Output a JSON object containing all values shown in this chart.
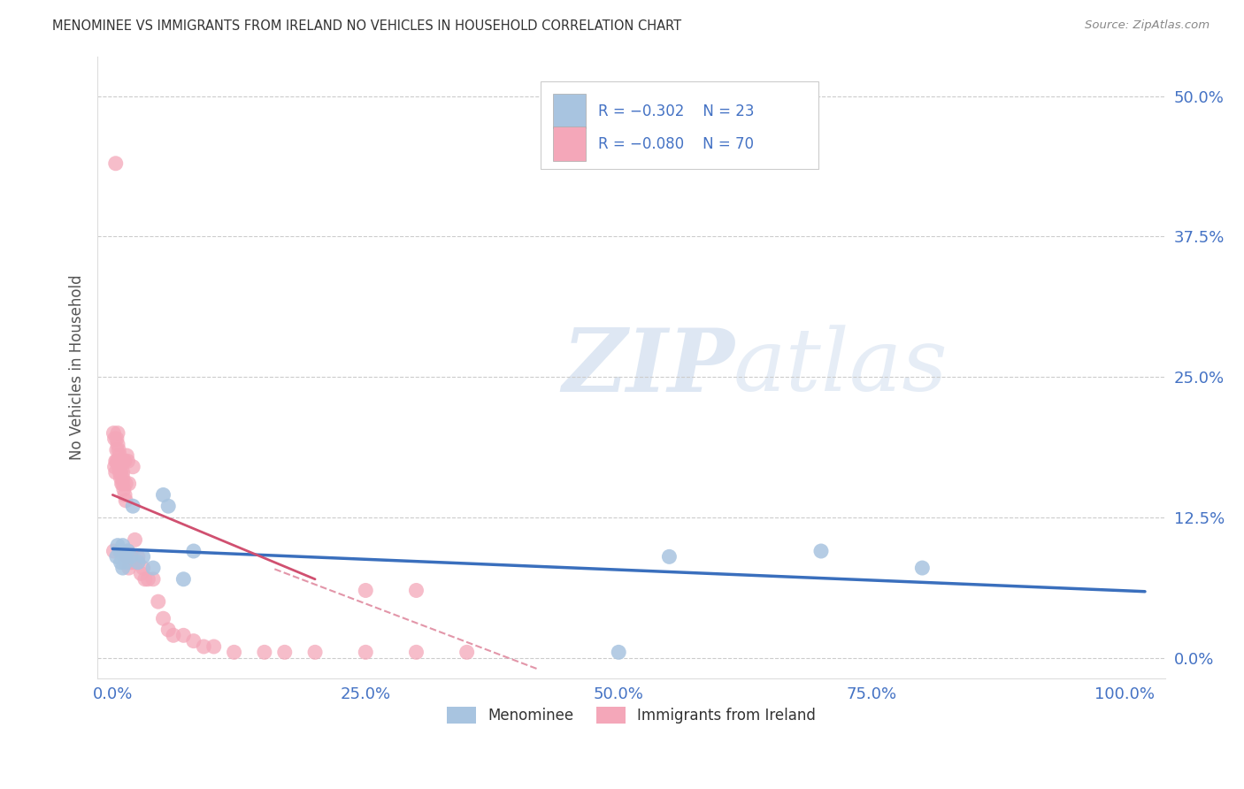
{
  "title": "MENOMINEE VS IMMIGRANTS FROM IRELAND NO VEHICLES IN HOUSEHOLD CORRELATION CHART",
  "source": "Source: ZipAtlas.com",
  "ylabel": "No Vehicles in Household",
  "xlabel_ticks": [
    "0.0%",
    "25.0%",
    "50.0%",
    "75.0%",
    "100.0%"
  ],
  "xlabel_tick_vals": [
    0.0,
    0.25,
    0.5,
    0.75,
    1.0
  ],
  "ylabel_ticks": [
    "0.0%",
    "12.5%",
    "25.0%",
    "37.5%",
    "50.0%"
  ],
  "ylabel_tick_vals": [
    0.0,
    0.125,
    0.25,
    0.375,
    0.5
  ],
  "xlim": [
    -0.015,
    1.04
  ],
  "ylim": [
    -0.018,
    0.535
  ],
  "menominee_color": "#a8c4e0",
  "ireland_color": "#f4a7b9",
  "trendline_menominee_color": "#3a6fbd",
  "trendline_ireland_color": "#d05070",
  "watermark_zip": "ZIP",
  "watermark_atlas": "atlas",
  "background_color": "#ffffff",
  "grid_color": "#cccccc",
  "title_color": "#333333",
  "tick_color": "#4472c4",
  "menominee_x": [
    0.004,
    0.005,
    0.007,
    0.008,
    0.009,
    0.01,
    0.01,
    0.012,
    0.013,
    0.015,
    0.018,
    0.02,
    0.025,
    0.03,
    0.04,
    0.05,
    0.055,
    0.07,
    0.08,
    0.5,
    0.55,
    0.7,
    0.8
  ],
  "menominee_y": [
    0.09,
    0.1,
    0.095,
    0.085,
    0.095,
    0.1,
    0.08,
    0.09,
    0.085,
    0.095,
    0.09,
    0.135,
    0.085,
    0.09,
    0.08,
    0.145,
    0.135,
    0.07,
    0.095,
    0.005,
    0.09,
    0.095,
    0.08
  ],
  "ireland_x": [
    0.001,
    0.001,
    0.002,
    0.002,
    0.003,
    0.003,
    0.003,
    0.004,
    0.004,
    0.004,
    0.005,
    0.005,
    0.005,
    0.006,
    0.006,
    0.007,
    0.007,
    0.007,
    0.008,
    0.008,
    0.008,
    0.009,
    0.009,
    0.01,
    0.01,
    0.01,
    0.011,
    0.011,
    0.012,
    0.012,
    0.013,
    0.013,
    0.014,
    0.014,
    0.015,
    0.015,
    0.016,
    0.016,
    0.017,
    0.018,
    0.019,
    0.02,
    0.02,
    0.021,
    0.022,
    0.023,
    0.025,
    0.025,
    0.028,
    0.03,
    0.032,
    0.035,
    0.04,
    0.045,
    0.05,
    0.055,
    0.06,
    0.07,
    0.08,
    0.09,
    0.1,
    0.12,
    0.15,
    0.17,
    0.2,
    0.25,
    0.25,
    0.3,
    0.3,
    0.35
  ],
  "ireland_y": [
    0.095,
    0.2,
    0.17,
    0.195,
    0.165,
    0.175,
    0.44,
    0.175,
    0.195,
    0.185,
    0.175,
    0.19,
    0.2,
    0.17,
    0.185,
    0.165,
    0.175,
    0.18,
    0.16,
    0.165,
    0.175,
    0.155,
    0.175,
    0.155,
    0.165,
    0.16,
    0.15,
    0.175,
    0.145,
    0.175,
    0.14,
    0.155,
    0.09,
    0.18,
    0.095,
    0.175,
    0.08,
    0.155,
    0.085,
    0.09,
    0.085,
    0.09,
    0.17,
    0.085,
    0.105,
    0.085,
    0.085,
    0.09,
    0.075,
    0.08,
    0.07,
    0.07,
    0.07,
    0.05,
    0.035,
    0.025,
    0.02,
    0.02,
    0.015,
    0.01,
    0.01,
    0.005,
    0.005,
    0.005,
    0.005,
    0.005,
    0.06,
    0.005,
    0.06,
    0.005
  ],
  "trendline_m_x0": 0.0,
  "trendline_m_x1": 1.02,
  "trendline_m_y0": 0.097,
  "trendline_m_y1": 0.059,
  "trendline_i_x0": 0.0,
  "trendline_i_x1": 0.2,
  "trendline_i_y0": 0.145,
  "trendline_i_y1": 0.07,
  "trendline_i_dash_x0": 0.16,
  "trendline_i_dash_x1": 0.42,
  "trendline_i_dash_y0": 0.079,
  "trendline_i_dash_y1": -0.01
}
